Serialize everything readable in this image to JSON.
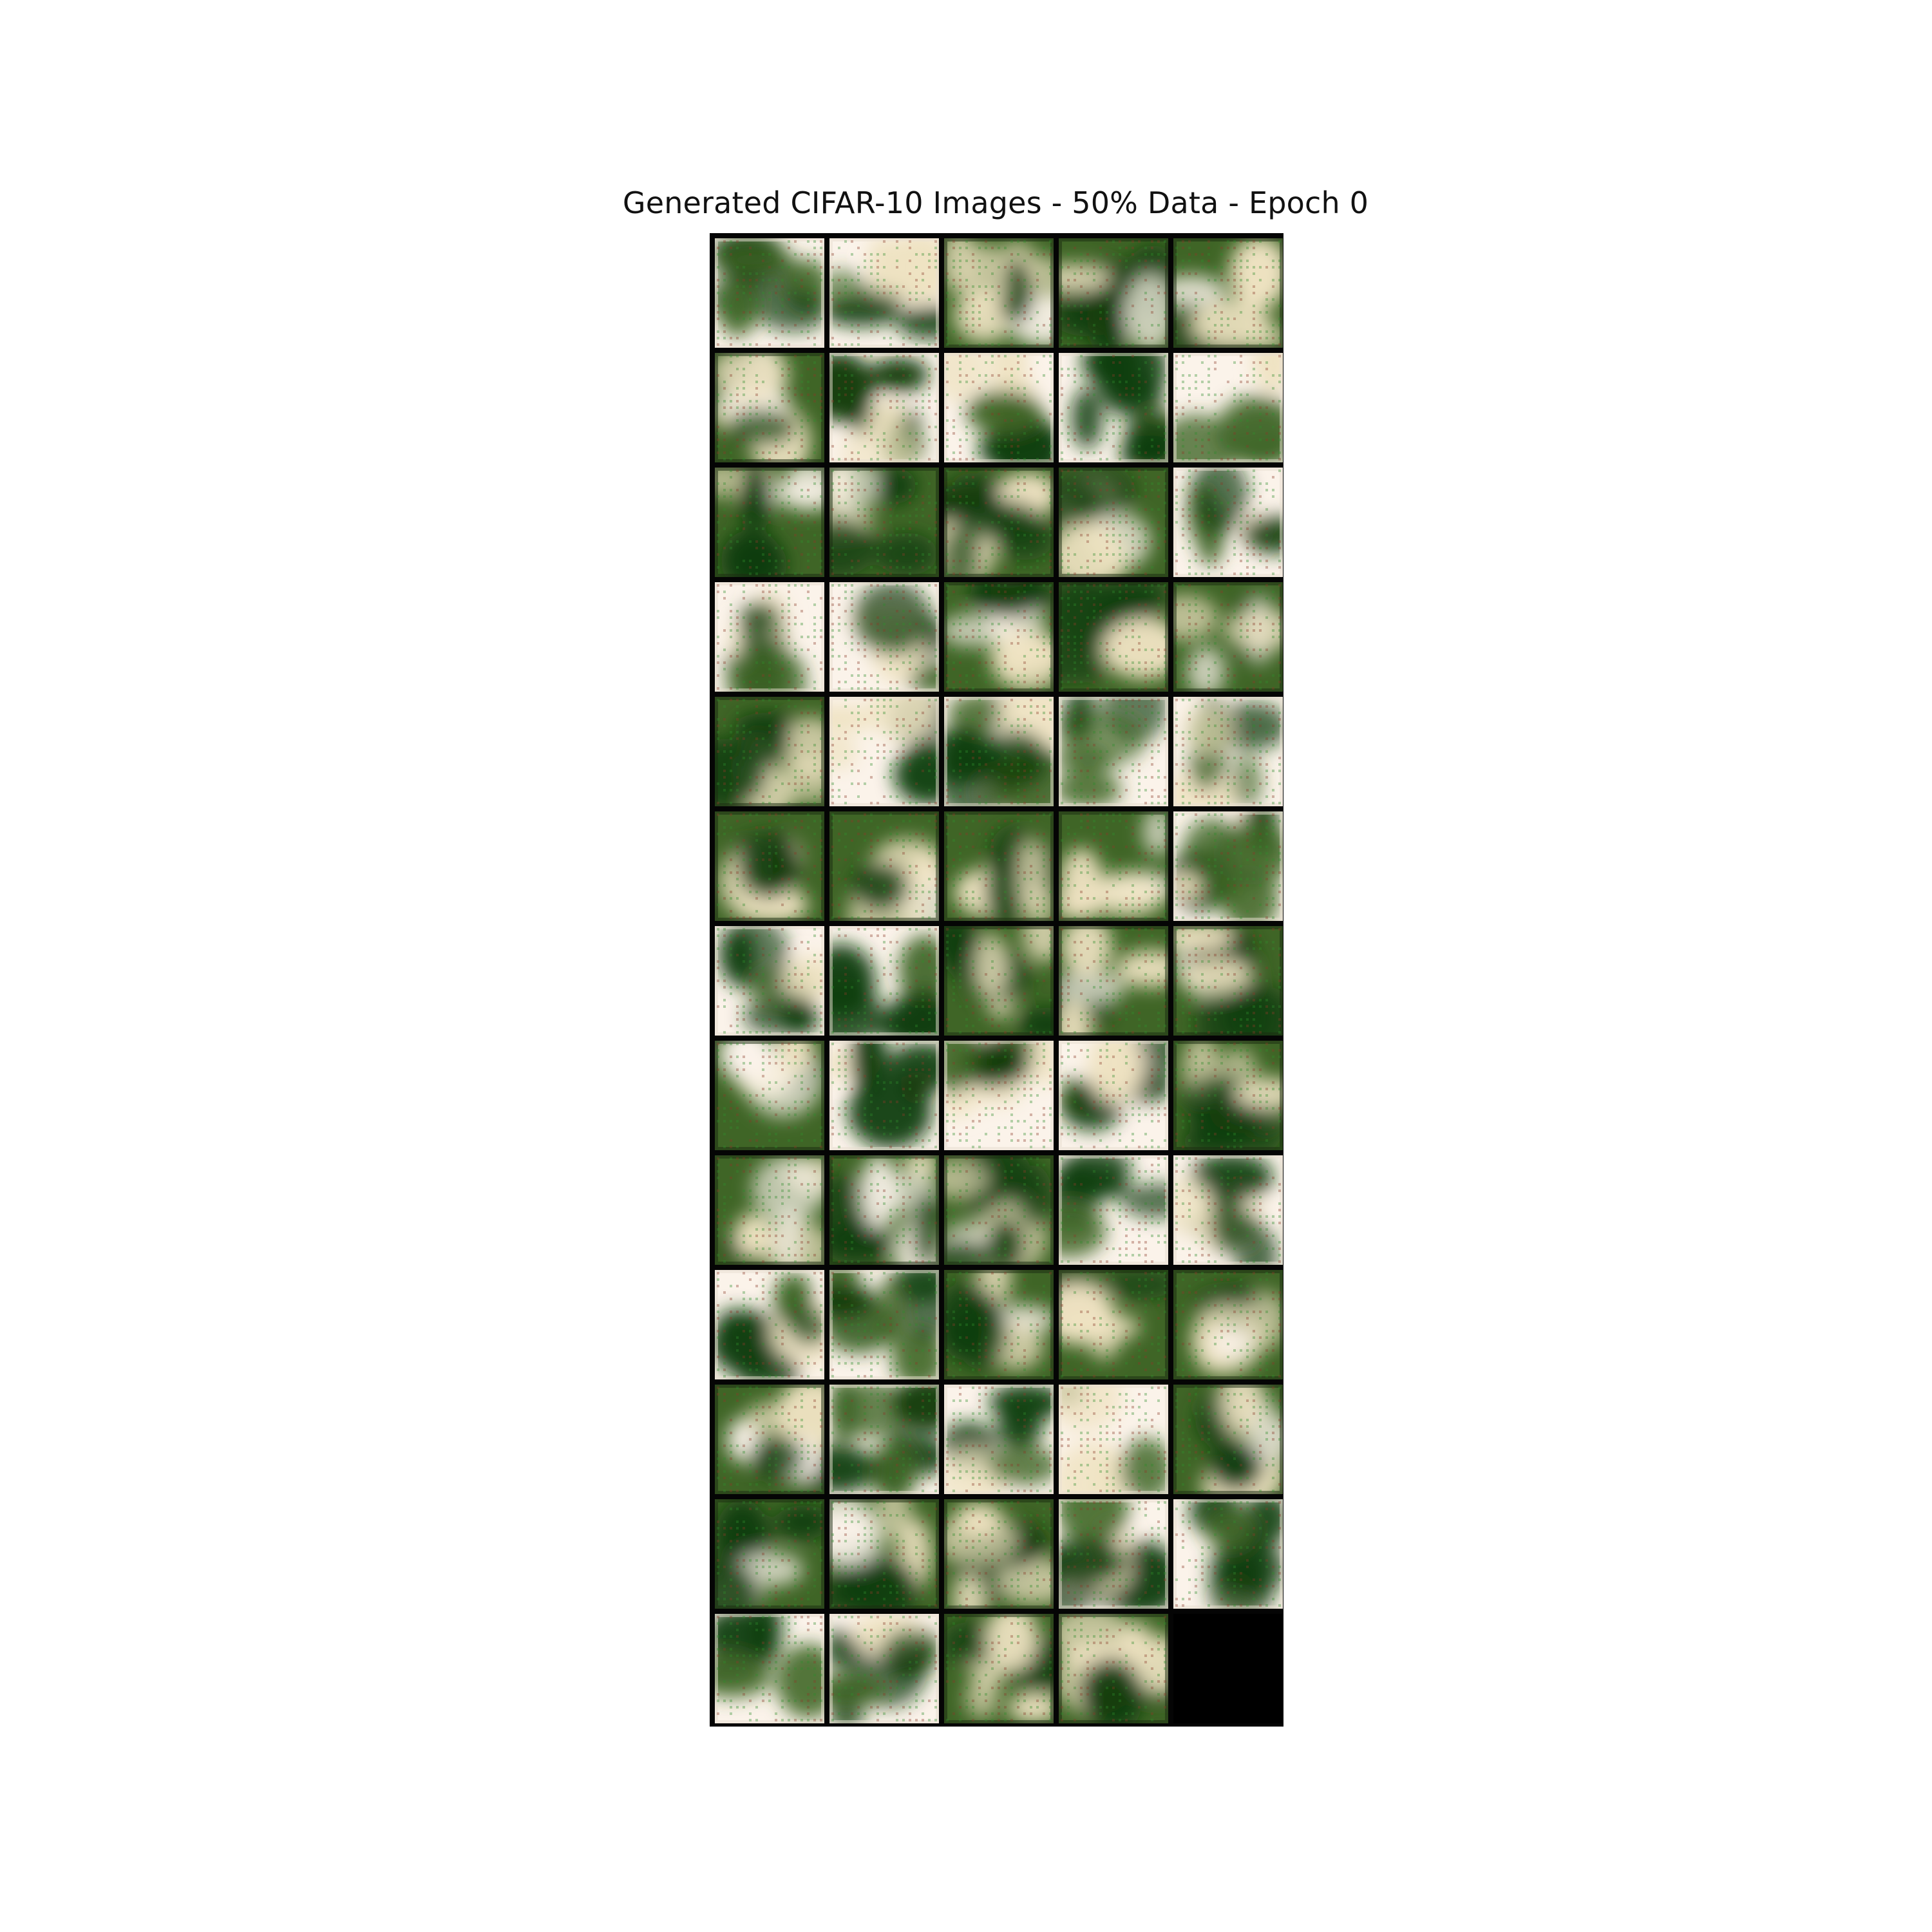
{
  "title": "Generated CIFAR-10 Images - 50% Data - Epoch 0",
  "grid": {
    "columns": 5,
    "rows": 13,
    "image_count": 64,
    "empty_cells": 1
  },
  "colors": {
    "background": "#ffffff",
    "grid_border": "#050505",
    "dark_green": "#123d0c",
    "mid_green": "#3f6526",
    "cream": "#efe3c2",
    "light": "#fbf3ea",
    "pixel_noise_green": "#2f8d2c",
    "pixel_noise_red": "#8a3a28"
  }
}
